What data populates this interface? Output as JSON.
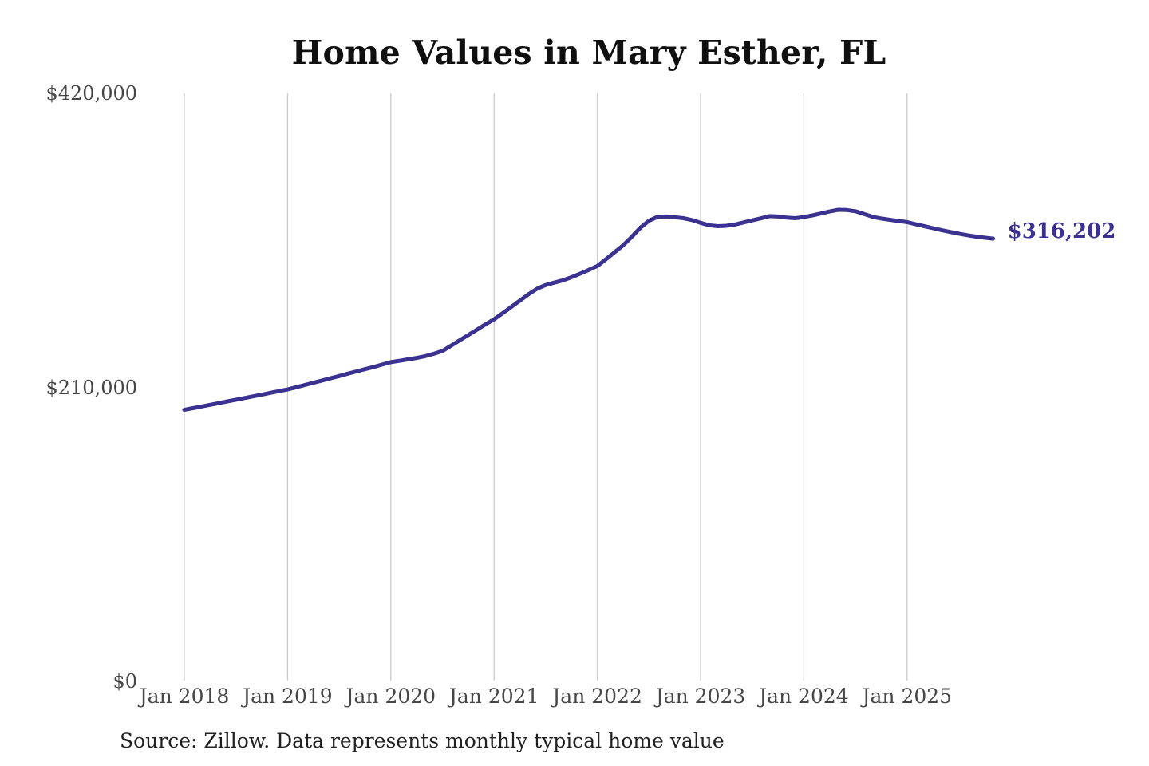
{
  "chart_data": {
    "type": "line",
    "title": "Home Values in Mary Esther, FL",
    "series_name": "Monthly typical home value",
    "x": [
      "2018-01",
      "2018-02",
      "2018-03",
      "2018-04",
      "2018-05",
      "2018-06",
      "2018-07",
      "2018-08",
      "2018-09",
      "2018-10",
      "2018-11",
      "2018-12",
      "2019-01",
      "2019-02",
      "2019-03",
      "2019-04",
      "2019-05",
      "2019-06",
      "2019-07",
      "2019-08",
      "2019-09",
      "2019-10",
      "2019-11",
      "2019-12",
      "2020-01",
      "2020-02",
      "2020-03",
      "2020-04",
      "2020-05",
      "2020-06",
      "2020-07",
      "2020-08",
      "2020-09",
      "2020-10",
      "2020-11",
      "2020-12",
      "2021-01",
      "2021-02",
      "2021-03",
      "2021-04",
      "2021-05",
      "2021-06",
      "2021-07",
      "2021-08",
      "2021-09",
      "2021-10",
      "2021-11",
      "2021-12",
      "2022-01",
      "2022-02",
      "2022-03",
      "2022-04",
      "2022-05",
      "2022-06",
      "2022-07",
      "2022-08",
      "2022-09",
      "2022-10",
      "2022-11",
      "2022-12",
      "2023-01",
      "2023-02",
      "2023-03",
      "2023-04",
      "2023-05",
      "2023-06",
      "2023-07",
      "2023-08",
      "2023-09",
      "2023-10",
      "2023-11",
      "2023-12",
      "2024-01",
      "2024-02",
      "2024-03",
      "2024-04",
      "2024-05",
      "2024-06",
      "2024-07",
      "2024-08",
      "2024-09",
      "2024-10",
      "2024-11",
      "2024-12",
      "2025-01",
      "2025-02",
      "2025-03",
      "2025-04",
      "2025-05",
      "2025-06",
      "2025-07",
      "2025-08",
      "2025-09",
      "2025-10",
      "2025-11"
    ],
    "values": [
      194000,
      195200,
      196400,
      197600,
      198800,
      200000,
      201200,
      202400,
      203600,
      204800,
      206100,
      207300,
      208500,
      210100,
      211700,
      213300,
      214900,
      216500,
      218100,
      219800,
      221400,
      223000,
      224600,
      226300,
      228000,
      229000,
      230000,
      231000,
      232300,
      234000,
      236000,
      239800,
      243600,
      247400,
      251200,
      255000,
      258600,
      263000,
      267500,
      272000,
      276500,
      280500,
      283100,
      284800,
      286500,
      288700,
      291200,
      293900,
      296700,
      301500,
      306500,
      311500,
      317500,
      324000,
      329000,
      331800,
      332000,
      331500,
      330800,
      329500,
      327500,
      325800,
      325100,
      325400,
      326300,
      327800,
      329300,
      330700,
      332300,
      332000,
      331200,
      330800,
      331600,
      332800,
      334200,
      335600,
      336800,
      336600,
      335800,
      333800,
      331800,
      330600,
      329700,
      328800,
      328000,
      326500,
      325100,
      323700,
      322300,
      321000,
      319800,
      318700,
      317700,
      316900,
      316202
    ],
    "x_ticks": [
      {
        "label": "Jan 2018",
        "month_index": 0
      },
      {
        "label": "Jan 2019",
        "month_index": 12
      },
      {
        "label": "Jan 2020",
        "month_index": 24
      },
      {
        "label": "Jan 2021",
        "month_index": 36
      },
      {
        "label": "Jan 2022",
        "month_index": 48
      },
      {
        "label": "Jan 2023",
        "month_index": 60
      },
      {
        "label": "Jan 2024",
        "month_index": 72
      },
      {
        "label": "Jan 2025",
        "month_index": 84
      }
    ],
    "y_ticks": [
      {
        "label": "$0",
        "value": 0
      },
      {
        "label": "$210,000",
        "value": 210000
      },
      {
        "label": "$420,000",
        "value": 420000
      }
    ],
    "ylim": [
      0,
      420000
    ],
    "grid": "vertical-only",
    "legend_position": "none",
    "line_color": "#3b3191",
    "grid_color": "#cbcbcb",
    "tick_label_color": "#464646",
    "end_label": "$316,202",
    "end_value": 316202
  },
  "source_note": "Source: Zillow. Data represents monthly typical home value"
}
